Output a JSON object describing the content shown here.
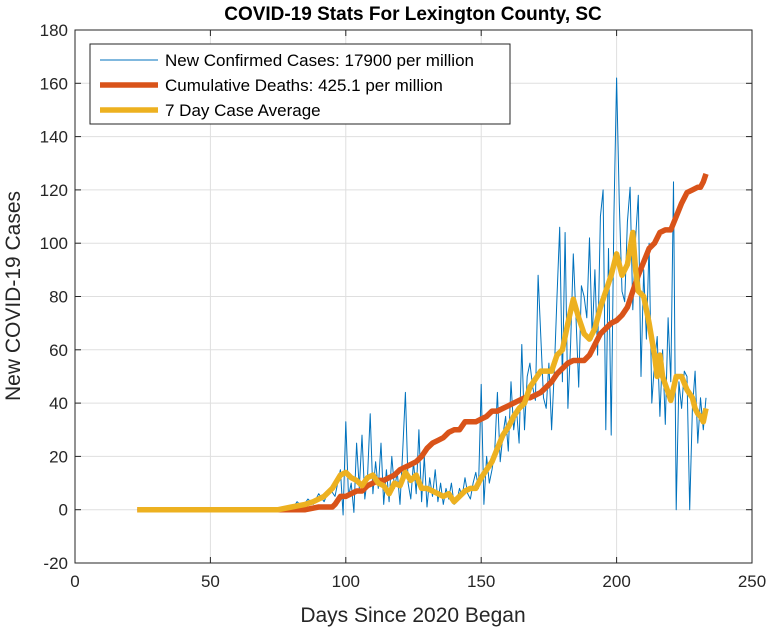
{
  "chart_data": {
    "type": "line",
    "title": "COVID-19 Stats For Lexington County, SC",
    "xlabel": "Days Since 2020 Began",
    "ylabel": "New COVID-19 Cases",
    "xlim": [
      0,
      250
    ],
    "ylim": [
      -20,
      180
    ],
    "xticks": [
      0,
      50,
      100,
      150,
      200,
      250
    ],
    "yticks": [
      -20,
      0,
      20,
      40,
      60,
      80,
      100,
      120,
      140,
      160,
      180
    ],
    "grid": true,
    "legend_position": "top-left",
    "series": [
      {
        "name": "New Confirmed Cases: 17900 per million",
        "color": "#0072BD",
        "line_width": "thin",
        "points": [
          [
            23,
            0
          ],
          [
            60,
            0
          ],
          [
            75,
            0
          ],
          [
            78,
            1
          ],
          [
            80,
            0
          ],
          [
            82,
            3
          ],
          [
            84,
            1
          ],
          [
            86,
            4
          ],
          [
            88,
            2
          ],
          [
            90,
            6
          ],
          [
            92,
            3
          ],
          [
            94,
            8
          ],
          [
            96,
            5
          ],
          [
            98,
            15
          ],
          [
            99,
            -2
          ],
          [
            100,
            33
          ],
          [
            101,
            5
          ],
          [
            102,
            10
          ],
          [
            103,
            -1
          ],
          [
            104,
            25
          ],
          [
            105,
            8
          ],
          [
            106,
            28
          ],
          [
            107,
            4
          ],
          [
            108,
            12
          ],
          [
            109,
            36
          ],
          [
            110,
            6
          ],
          [
            111,
            18
          ],
          [
            112,
            8
          ],
          [
            113,
            25
          ],
          [
            114,
            2
          ],
          [
            115,
            15
          ],
          [
            116,
            3
          ],
          [
            117,
            20
          ],
          [
            118,
            8
          ],
          [
            119,
            14
          ],
          [
            120,
            2
          ],
          [
            121,
            22
          ],
          [
            122,
            44
          ],
          [
            123,
            10
          ],
          [
            124,
            4
          ],
          [
            125,
            18
          ],
          [
            126,
            6
          ],
          [
            127,
            30
          ],
          [
            128,
            3
          ],
          [
            129,
            20
          ],
          [
            130,
            1
          ],
          [
            131,
            12
          ],
          [
            132,
            5
          ],
          [
            133,
            15
          ],
          [
            134,
            3
          ],
          [
            135,
            10
          ],
          [
            136,
            2
          ],
          [
            137,
            8
          ],
          [
            138,
            4
          ],
          [
            139,
            10
          ],
          [
            140,
            2
          ],
          [
            141,
            3
          ],
          [
            142,
            8
          ],
          [
            143,
            5
          ],
          [
            144,
            12
          ],
          [
            145,
            6
          ],
          [
            146,
            4
          ],
          [
            147,
            10
          ],
          [
            148,
            14
          ],
          [
            149,
            8
          ],
          [
            150,
            47
          ],
          [
            151,
            2
          ],
          [
            152,
            20
          ],
          [
            153,
            10
          ],
          [
            154,
            15
          ],
          [
            155,
            22
          ],
          [
            156,
            44
          ],
          [
            157,
            18
          ],
          [
            158,
            28
          ],
          [
            159,
            35
          ],
          [
            160,
            22
          ],
          [
            161,
            48
          ],
          [
            162,
            30
          ],
          [
            163,
            38
          ],
          [
            164,
            25
          ],
          [
            165,
            62
          ],
          [
            166,
            30
          ],
          [
            167,
            50
          ],
          [
            168,
            55
          ],
          [
            169,
            46
          ],
          [
            170,
            41
          ],
          [
            171,
            88
          ],
          [
            172,
            65
          ],
          [
            173,
            42
          ],
          [
            174,
            38
          ],
          [
            175,
            55
          ],
          [
            176,
            30
          ],
          [
            177,
            52
          ],
          [
            178,
            80
          ],
          [
            179,
            106
          ],
          [
            180,
            48
          ],
          [
            181,
            104
          ],
          [
            182,
            38
          ],
          [
            183,
            62
          ],
          [
            184,
            96
          ],
          [
            185,
            72
          ],
          [
            186,
            46
          ],
          [
            187,
            84
          ],
          [
            188,
            80
          ],
          [
            189,
            72
          ],
          [
            190,
            102
          ],
          [
            191,
            64
          ],
          [
            192,
            90
          ],
          [
            193,
            58
          ],
          [
            194,
            110
          ],
          [
            195,
            120
          ],
          [
            196,
            30
          ],
          [
            197,
            98
          ],
          [
            198,
            28
          ],
          [
            199,
            110
          ],
          [
            200,
            162
          ],
          [
            201,
            115
          ],
          [
            202,
            82
          ],
          [
            203,
            78
          ],
          [
            204,
            108
          ],
          [
            205,
            121
          ],
          [
            206,
            75
          ],
          [
            207,
            102
          ],
          [
            208,
            118
          ],
          [
            209,
            50
          ],
          [
            210,
            90
          ],
          [
            211,
            64
          ],
          [
            212,
            100
          ],
          [
            213,
            40
          ],
          [
            214,
            55
          ],
          [
            215,
            65
          ],
          [
            216,
            35
          ],
          [
            217,
            60
          ],
          [
            218,
            32
          ],
          [
            219,
            72
          ],
          [
            220,
            48
          ],
          [
            221,
            123
          ],
          [
            222,
            0
          ],
          [
            223,
            48
          ],
          [
            224,
            38
          ],
          [
            225,
            52
          ],
          [
            226,
            50
          ],
          [
            227,
            0
          ],
          [
            228,
            38
          ],
          [
            229,
            52
          ],
          [
            230,
            25
          ],
          [
            231,
            42
          ],
          [
            232,
            30
          ],
          [
            233,
            42
          ]
        ]
      },
      {
        "name": "Cumulative Deaths: 425.1 per million",
        "color": "#D95319",
        "line_width": "thick",
        "points": [
          [
            23,
            0
          ],
          [
            80,
            0
          ],
          [
            85,
            0
          ],
          [
            90,
            1
          ],
          [
            92,
            1
          ],
          [
            95,
            1
          ],
          [
            96,
            2
          ],
          [
            98,
            5
          ],
          [
            100,
            5
          ],
          [
            102,
            6
          ],
          [
            104,
            7
          ],
          [
            106,
            7
          ],
          [
            108,
            9
          ],
          [
            110,
            10
          ],
          [
            112,
            11
          ],
          [
            114,
            11
          ],
          [
            116,
            12
          ],
          [
            118,
            13
          ],
          [
            120,
            15
          ],
          [
            122,
            16
          ],
          [
            124,
            17
          ],
          [
            126,
            18
          ],
          [
            128,
            20
          ],
          [
            130,
            23
          ],
          [
            132,
            25
          ],
          [
            134,
            26
          ],
          [
            136,
            27
          ],
          [
            138,
            29
          ],
          [
            140,
            30
          ],
          [
            142,
            30
          ],
          [
            144,
            33
          ],
          [
            146,
            33
          ],
          [
            148,
            33
          ],
          [
            150,
            34
          ],
          [
            152,
            35
          ],
          [
            154,
            37
          ],
          [
            156,
            37
          ],
          [
            158,
            38
          ],
          [
            160,
            39
          ],
          [
            162,
            40
          ],
          [
            164,
            41
          ],
          [
            166,
            42
          ],
          [
            168,
            42
          ],
          [
            170,
            43
          ],
          [
            172,
            44
          ],
          [
            174,
            46
          ],
          [
            176,
            48
          ],
          [
            178,
            51
          ],
          [
            180,
            53
          ],
          [
            182,
            55
          ],
          [
            184,
            56
          ],
          [
            186,
            56
          ],
          [
            188,
            56
          ],
          [
            190,
            58
          ],
          [
            192,
            62
          ],
          [
            194,
            66
          ],
          [
            196,
            68
          ],
          [
            198,
            70
          ],
          [
            200,
            71
          ],
          [
            202,
            73
          ],
          [
            204,
            76
          ],
          [
            206,
            82
          ],
          [
            208,
            88
          ],
          [
            210,
            93
          ],
          [
            212,
            98
          ],
          [
            214,
            100
          ],
          [
            216,
            104
          ],
          [
            218,
            105
          ],
          [
            220,
            105
          ],
          [
            222,
            110
          ],
          [
            224,
            115
          ],
          [
            226,
            119
          ],
          [
            228,
            120
          ],
          [
            230,
            121
          ],
          [
            231,
            121
          ],
          [
            232,
            123
          ],
          [
            233,
            126
          ]
        ]
      },
      {
        "name": "7 Day Case Average",
        "color": "#EDB120",
        "line_width": "thick",
        "points": [
          [
            23,
            0
          ],
          [
            75,
            0
          ],
          [
            80,
            1
          ],
          [
            85,
            2
          ],
          [
            88,
            3
          ],
          [
            92,
            5
          ],
          [
            95,
            8
          ],
          [
            98,
            13
          ],
          [
            100,
            14
          ],
          [
            102,
            12
          ],
          [
            104,
            11
          ],
          [
            106,
            9
          ],
          [
            108,
            12
          ],
          [
            110,
            13
          ],
          [
            112,
            10
          ],
          [
            114,
            9
          ],
          [
            116,
            6
          ],
          [
            118,
            10
          ],
          [
            120,
            9
          ],
          [
            122,
            14
          ],
          [
            124,
            11
          ],
          [
            126,
            13
          ],
          [
            128,
            8
          ],
          [
            130,
            8
          ],
          [
            132,
            7
          ],
          [
            134,
            6
          ],
          [
            136,
            5
          ],
          [
            138,
            6
          ],
          [
            140,
            3
          ],
          [
            142,
            5
          ],
          [
            144,
            7
          ],
          [
            146,
            8
          ],
          [
            148,
            8
          ],
          [
            150,
            12
          ],
          [
            152,
            15
          ],
          [
            154,
            18
          ],
          [
            156,
            23
          ],
          [
            158,
            28
          ],
          [
            160,
            31
          ],
          [
            162,
            35
          ],
          [
            164,
            38
          ],
          [
            166,
            40
          ],
          [
            168,
            46
          ],
          [
            170,
            49
          ],
          [
            172,
            52
          ],
          [
            174,
            52
          ],
          [
            176,
            52
          ],
          [
            178,
            58
          ],
          [
            180,
            60
          ],
          [
            182,
            70
          ],
          [
            184,
            79
          ],
          [
            186,
            72
          ],
          [
            188,
            66
          ],
          [
            190,
            64
          ],
          [
            192,
            68
          ],
          [
            194,
            76
          ],
          [
            196,
            82
          ],
          [
            198,
            88
          ],
          [
            200,
            96
          ],
          [
            202,
            88
          ],
          [
            204,
            92
          ],
          [
            206,
            104
          ],
          [
            207,
            90
          ],
          [
            208,
            82
          ],
          [
            210,
            80
          ],
          [
            212,
            70
          ],
          [
            214,
            58
          ],
          [
            215,
            50
          ],
          [
            216,
            58
          ],
          [
            217,
            50
          ],
          [
            218,
            47
          ],
          [
            219,
            44
          ],
          [
            220,
            41
          ],
          [
            222,
            50
          ],
          [
            224,
            50
          ],
          [
            226,
            45
          ],
          [
            228,
            42
          ],
          [
            229,
            38
          ],
          [
            230,
            36
          ],
          [
            231,
            35
          ],
          [
            232,
            33
          ],
          [
            233,
            38
          ]
        ]
      }
    ]
  }
}
